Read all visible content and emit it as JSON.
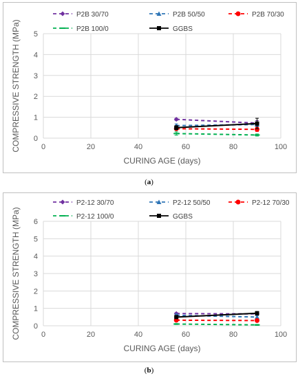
{
  "chart_data": [
    {
      "type": "line",
      "panel_label": "a",
      "xlabel": "CURING AGE (days)",
      "ylabel": "COMPRESSIVE STRENGTH (MPa)",
      "xlim": [
        0,
        100
      ],
      "ylim": [
        0,
        5
      ],
      "xticks": [
        "0",
        "20",
        "40",
        "60",
        "80",
        "100"
      ],
      "yticks": [
        "0",
        "1",
        "2",
        "3",
        "4",
        "5"
      ],
      "grid": true,
      "legend_position": "top",
      "series": [
        {
          "name": "P2B 30/70",
          "color": "#7030a0",
          "dash": "dashed",
          "marker": "diamond",
          "x": [
            56,
            90
          ],
          "y": [
            0.9,
            0.72
          ],
          "err": [
            0.05,
            0.12
          ]
        },
        {
          "name": "P2B 50/50",
          "color": "#2e75b6",
          "dash": "dashed",
          "marker": "triangle",
          "x": [
            56,
            90
          ],
          "y": [
            0.6,
            0.65
          ],
          "err": [
            0.08,
            0.1
          ]
        },
        {
          "name": "P2B 70/30",
          "color": "#ff0000",
          "dash": "dashed",
          "marker": "circle",
          "x": [
            56,
            90
          ],
          "y": [
            0.45,
            0.42
          ],
          "err": [
            0.05,
            0.1
          ]
        },
        {
          "name": "P2B 100/0",
          "color": "#00b050",
          "dash": "dashed",
          "marker": "dash",
          "x": [
            56,
            90
          ],
          "y": [
            0.22,
            0.15
          ],
          "err": [
            0.08,
            0.05
          ]
        },
        {
          "name": "GGBS",
          "color": "#000000",
          "dash": "solid",
          "marker": "square",
          "x": [
            56,
            90
          ],
          "y": [
            0.5,
            0.7
          ],
          "err": [
            0.1,
            0.25
          ]
        }
      ]
    },
    {
      "type": "line",
      "panel_label": "b",
      "xlabel": "CURING AGE (days)",
      "ylabel": "COMPRESSIVE STRENGTH (MPa)",
      "xlim": [
        0,
        100
      ],
      "ylim": [
        0,
        6
      ],
      "xticks": [
        "0",
        "20",
        "40",
        "60",
        "80",
        "100"
      ],
      "yticks": [
        "0",
        "1",
        "2",
        "3",
        "4",
        "5",
        "6"
      ],
      "grid": true,
      "legend_position": "top",
      "series": [
        {
          "name": "P2-12 30/70",
          "color": "#7030a0",
          "dash": "dashed",
          "marker": "diamond",
          "x": [
            56,
            90
          ],
          "y": [
            0.7,
            0.68
          ],
          "err": [
            0.05,
            0.08
          ]
        },
        {
          "name": "P2-12 50/50",
          "color": "#2e75b6",
          "dash": "dashed",
          "marker": "triangle",
          "x": [
            56,
            90
          ],
          "y": [
            0.6,
            0.5
          ],
          "err": [
            0.08,
            0.08
          ]
        },
        {
          "name": "P2-12 70/30",
          "color": "#ff0000",
          "dash": "dashed",
          "marker": "circle",
          "x": [
            56,
            90
          ],
          "y": [
            0.32,
            0.3
          ],
          "err": [
            0.05,
            0.05
          ]
        },
        {
          "name": "P2-12 100/0",
          "color": "#00b050",
          "dash": "dashed",
          "marker": "dash",
          "x": [
            56,
            90
          ],
          "y": [
            0.1,
            0.05
          ],
          "err": [
            0.03,
            0.03
          ]
        },
        {
          "name": "GGBS",
          "color": "#000000",
          "dash": "solid",
          "marker": "square",
          "x": [
            56,
            90
          ],
          "y": [
            0.5,
            0.72
          ],
          "err": [
            0.08,
            0.1
          ]
        }
      ]
    }
  ],
  "captions": {
    "a": "a",
    "b": "b"
  }
}
